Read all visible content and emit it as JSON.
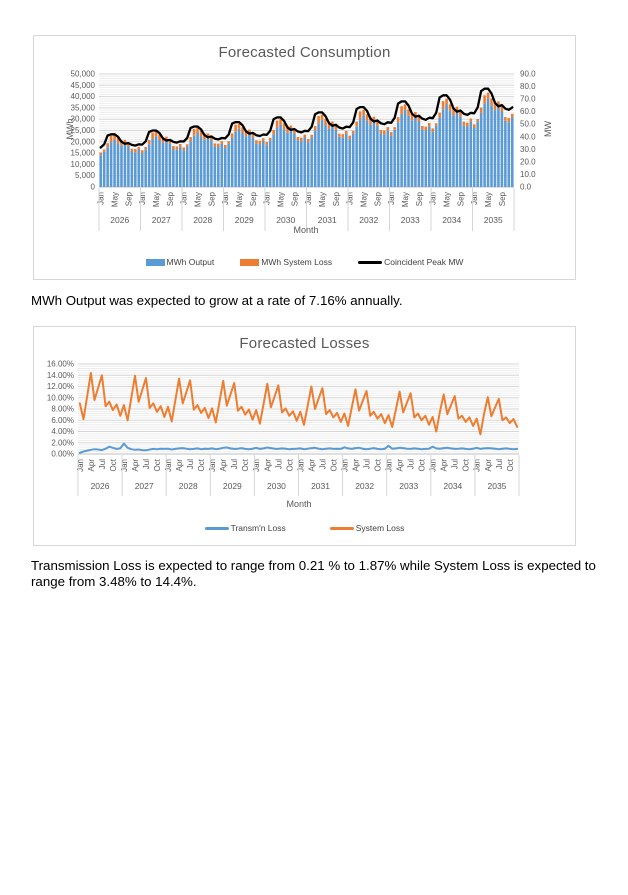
{
  "notes": {
    "growth": "MWh Output was expected to grow at a rate of 7.16% annually.",
    "loss_range": "Transmission Loss is expected to range from 0.21 % to 1.87% while System Loss is expected to range from 3.48% to 14.4%."
  },
  "colors": {
    "blue": "#5B9BD5",
    "orange": "#ED7D31",
    "black": "#000000",
    "grid_major": "#D6D6D6",
    "grid_minor": "#EDEDED",
    "axis_line": "#BFBFBF",
    "axis_text": "#595959",
    "title_text": "#595959",
    "box_border": "#D7D7D7"
  },
  "chart_data": [
    {
      "type": "bar",
      "title": "Forecasted Consumption",
      "xlabel": "Month",
      "ylabel_left": "MWh",
      "ylabel_right": "MW",
      "years": [
        "2026",
        "2027",
        "2028",
        "2029",
        "2030",
        "2031",
        "2032",
        "2033",
        "2034",
        "2035"
      ],
      "month_tick_labels": [
        "Jan",
        "May",
        "Sep"
      ],
      "month_tick_offsets": [
        0,
        4,
        8
      ],
      "y_left": {
        "min": 0,
        "max": 50000,
        "major": 5000,
        "minor": 1000,
        "tick_labels": [
          "50,000",
          "45,000",
          "40,000",
          "35,000",
          "30,000",
          "25,000",
          "20,000",
          "15,000",
          "10,000",
          "5,000",
          "0"
        ]
      },
      "y_right": {
        "min": 0,
        "max": 90,
        "major": 10,
        "tick_labels": [
          "90.0",
          "80.0",
          "70.0",
          "60.0",
          "50.0",
          "40.0",
          "30.0",
          "20.0",
          "10.0",
          "0.0"
        ]
      },
      "legend_position": "bottom",
      "grid": true,
      "series": [
        {
          "name": "MWh Output",
          "type": "bar",
          "axis": "left",
          "color": "#5B9BD5",
          "values": [
            14000,
            15600,
            17600,
            19800,
            21000,
            19400,
            18200,
            19200,
            17900,
            15700,
            15400,
            16600,
            15000,
            16700,
            18900,
            21200,
            22500,
            20800,
            19500,
            20600,
            19200,
            16800,
            16500,
            17800,
            16100,
            17900,
            20200,
            22700,
            24100,
            22300,
            20900,
            22000,
            20600,
            18000,
            17700,
            19100,
            17200,
            19200,
            21700,
            24400,
            25800,
            23900,
            22400,
            23600,
            22000,
            19300,
            19000,
            20400,
            18500,
            20600,
            23200,
            26100,
            27700,
            25600,
            24000,
            25300,
            23600,
            20700,
            20300,
            21900,
            19800,
            22000,
            24900,
            28000,
            29700,
            27400,
            25700,
            27100,
            25300,
            22200,
            21800,
            23500,
            21200,
            23600,
            26700,
            30000,
            31800,
            29400,
            27600,
            29100,
            27100,
            23800,
            23300,
            25100,
            22700,
            25300,
            28600,
            32100,
            34100,
            31500,
            29500,
            31200,
            29000,
            25500,
            25000,
            26900,
            24300,
            27100,
            30600,
            34400,
            36500,
            33700,
            31600,
            33400,
            31100,
            27300,
            26800,
            28900,
            26100,
            29100,
            32800,
            36900,
            39100,
            36200,
            33900,
            35800,
            33400,
            29300,
            28700,
            30900
          ]
        },
        {
          "name": "MWh System Loss",
          "type": "bar",
          "axis": "left",
          "color": "#ED7D31",
          "values": [
            1300,
            1000,
            1800,
            2900,
            2000,
            2300,
            2500,
            1600,
            1700,
            1200,
            1400,
            1100,
            1300,
            1000,
            1900,
            2900,
            2100,
            2400,
            2600,
            1700,
            1700,
            1300,
            1400,
            1200,
            1400,
            1000,
            1900,
            3000,
            2200,
            2500,
            2700,
            1700,
            1800,
            1300,
            1500,
            1200,
            1400,
            1100,
            2000,
            3200,
            2200,
            2500,
            2800,
            1800,
            1800,
            1400,
            1500,
            1200,
            1400,
            1100,
            2100,
            3300,
            2300,
            2600,
            2900,
            1900,
            1900,
            1400,
            1500,
            1300,
            1500,
            1100,
            2100,
            3400,
            2400,
            2700,
            3000,
            1900,
            2000,
            1400,
            1600,
            1300,
            1500,
            1200,
            2200,
            3500,
            2400,
            2800,
            3100,
            2000,
            2000,
            1500,
            1700,
            1400,
            1600,
            1200,
            2300,
            3600,
            2500,
            2900,
            3200,
            2000,
            2100,
            1500,
            1700,
            1400,
            1600,
            1100,
            2300,
            3600,
            2600,
            2900,
            3300,
            2100,
            2100,
            1600,
            1700,
            1400,
            1600,
            1000,
            2400,
            3700,
            2600,
            3000,
            3300,
            2100,
            2200,
            1600,
            1800,
            1500
          ]
        },
        {
          "name": "Coincident Peak MW",
          "type": "line",
          "axis": "right",
          "color": "#000000",
          "values": [
            31.5,
            34.0,
            41.0,
            42.0,
            42.0,
            40.0,
            36.0,
            34.5,
            35.0,
            33.5,
            33.0,
            34.0,
            33.8,
            36.4,
            43.9,
            45.0,
            45.0,
            42.9,
            38.6,
            37.0,
            37.5,
            35.9,
            35.4,
            36.4,
            36.2,
            39.0,
            47.1,
            48.2,
            48.2,
            45.9,
            41.3,
            39.6,
            40.2,
            38.5,
            37.9,
            39.0,
            38.8,
            41.8,
            50.5,
            51.7,
            51.7,
            49.2,
            44.3,
            42.5,
            43.1,
            41.2,
            40.6,
            41.8,
            41.5,
            44.8,
            54.1,
            55.4,
            55.4,
            52.7,
            47.5,
            45.5,
            46.2,
            44.2,
            43.5,
            44.8,
            44.5,
            48.0,
            57.9,
            59.4,
            59.4,
            56.5,
            50.9,
            48.8,
            49.5,
            47.3,
            46.6,
            48.0,
            47.7,
            51.5,
            62.1,
            63.6,
            63.6,
            60.6,
            54.5,
            52.2,
            53.0,
            50.7,
            50.0,
            51.5,
            51.1,
            55.2,
            66.5,
            68.2,
            68.2,
            64.9,
            58.4,
            56.0,
            56.8,
            54.4,
            53.5,
            55.2,
            54.8,
            59.1,
            71.3,
            73.0,
            73.0,
            69.6,
            62.6,
            60.0,
            60.9,
            58.3,
            57.4,
            59.1,
            58.7,
            63.4,
            76.4,
            78.3,
            78.3,
            74.5,
            67.1,
            64.3,
            65.2,
            62.4,
            61.5,
            63.4
          ]
        }
      ]
    },
    {
      "type": "line",
      "title": "Forecasted Losses",
      "xlabel": "Month",
      "years": [
        "2026",
        "2027",
        "2028",
        "2029",
        "2030",
        "2031",
        "2032",
        "2033",
        "2034",
        "2035"
      ],
      "month_tick_labels": [
        "Jan",
        "Apr",
        "Jul",
        "Oct"
      ],
      "month_tick_offsets": [
        0,
        3,
        6,
        9
      ],
      "y": {
        "min": 0,
        "max": 16,
        "major": 2,
        "minor": 0.4,
        "unit": "%",
        "tick_labels": [
          "16.00%",
          "14.00%",
          "12.00%",
          "10.00%",
          "8.00%",
          "6.00%",
          "4.00%",
          "2.00%",
          "0.00%"
        ]
      },
      "legend_position": "bottom",
      "grid": true,
      "series": [
        {
          "name": "Transm'n Loss",
          "color": "#5B9BD5",
          "values": [
            0.21,
            0.45,
            0.6,
            0.75,
            0.85,
            0.8,
            0.7,
            0.95,
            1.3,
            1.1,
            0.9,
            1.0,
            1.87,
            1.1,
            0.85,
            0.75,
            0.8,
            0.7,
            0.65,
            0.8,
            0.9,
            0.85,
            0.95,
            0.9,
            0.95,
            0.8,
            0.9,
            1.0,
            1.05,
            0.95,
            0.85,
            0.9,
            1.0,
            0.85,
            0.95,
            0.9,
            1.0,
            0.85,
            0.95,
            1.1,
            1.15,
            1.0,
            0.9,
            0.95,
            1.05,
            0.9,
            0.85,
            0.95,
            1.1,
            0.9,
            1.0,
            1.15,
            1.05,
            0.95,
            0.9,
            1.0,
            0.95,
            0.85,
            0.9,
            0.95,
            1.0,
            0.85,
            0.95,
            1.05,
            1.1,
            0.95,
            0.85,
            0.95,
            1.0,
            0.9,
            0.95,
            0.9,
            1.2,
            1.0,
            0.9,
            1.05,
            1.1,
            0.95,
            0.85,
            0.95,
            1.05,
            0.9,
            0.85,
            0.95,
            1.45,
            0.95,
            1.0,
            1.1,
            1.05,
            0.95,
            0.9,
            1.0,
            0.95,
            0.85,
            0.9,
            0.95,
            1.3,
            1.0,
            0.95,
            1.05,
            1.1,
            1.0,
            0.9,
            0.95,
            1.0,
            0.9,
            0.85,
            0.95,
            1.1,
            0.9,
            1.0,
            1.05,
            1.0,
            0.95,
            0.85,
            0.95,
            1.0,
            0.9,
            0.85,
            0.9
          ]
        },
        {
          "name": "System Loss",
          "color": "#ED7D31",
          "values": [
            9.0,
            6.2,
            10.3,
            14.4,
            9.6,
            11.8,
            14.0,
            8.5,
            9.3,
            7.8,
            8.8,
            6.8,
            8.7,
            6.0,
            10.0,
            13.9,
            9.3,
            11.4,
            13.5,
            8.2,
            9.0,
            7.5,
            8.5,
            6.6,
            8.4,
            5.8,
            9.6,
            13.4,
            9.0,
            11.0,
            13.1,
            7.9,
            8.7,
            7.3,
            8.2,
            6.4,
            8.1,
            5.6,
            9.3,
            13.0,
            8.6,
            10.6,
            12.6,
            7.7,
            8.4,
            7.0,
            7.9,
            6.1,
            7.8,
            5.4,
            8.9,
            12.5,
            8.3,
            10.2,
            12.2,
            7.4,
            8.1,
            6.8,
            7.6,
            5.9,
            7.5,
            5.2,
            8.6,
            12.0,
            8.0,
            9.9,
            11.7,
            7.1,
            7.8,
            6.5,
            7.3,
            5.7,
            7.2,
            5.0,
            8.3,
            11.5,
            7.7,
            9.5,
            11.2,
            6.8,
            7.5,
            6.3,
            7.1,
            5.5,
            6.9,
            4.8,
            7.9,
            11.1,
            7.4,
            9.1,
            10.8,
            6.5,
            7.2,
            6.0,
            6.8,
            5.2,
            6.6,
            4.0,
            7.6,
            10.6,
            7.1,
            8.7,
            10.3,
            6.3,
            6.8,
            5.7,
            6.5,
            5.0,
            6.3,
            3.5,
            7.2,
            10.1,
            6.7,
            8.3,
            9.8,
            6.0,
            6.5,
            5.5,
            6.2,
            4.8
          ]
        }
      ]
    }
  ]
}
